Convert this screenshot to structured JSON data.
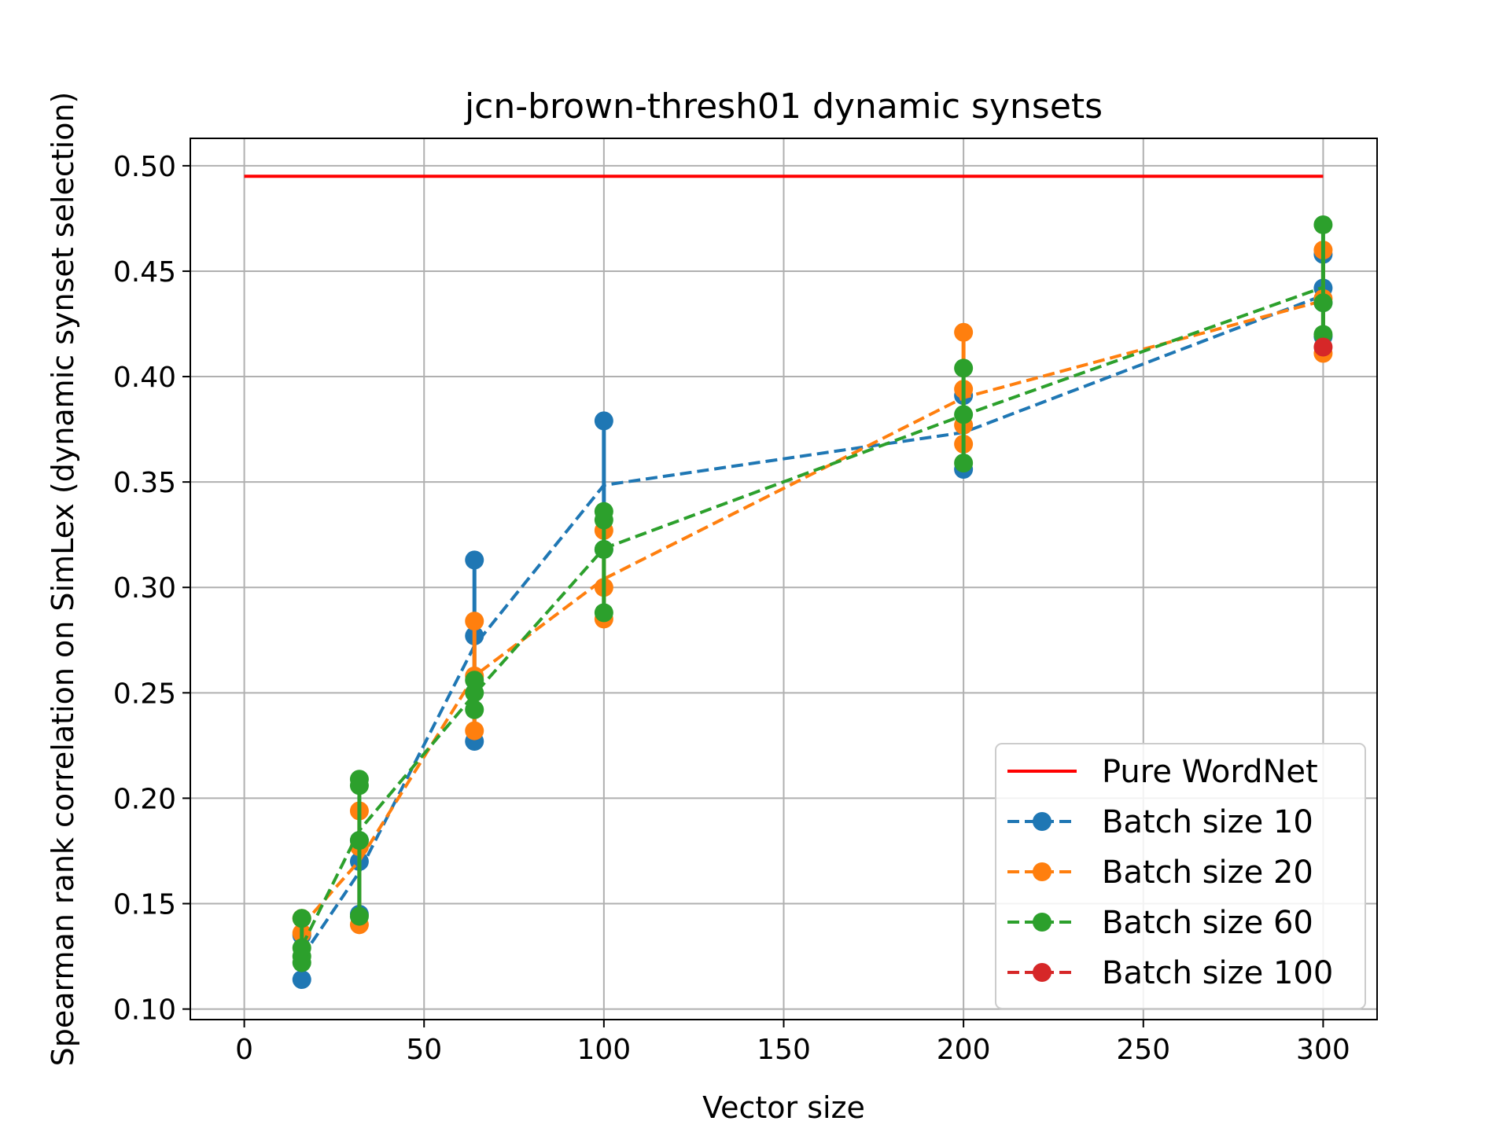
{
  "chart_data": {
    "type": "line",
    "title": "jcn-brown-thresh01 dynamic synsets",
    "xlabel": "Vector size",
    "ylabel": "Spearman rank correlation on SimLex (dynamic synset selection)",
    "xlim": [
      -15,
      315
    ],
    "ylim": [
      0.095,
      0.513
    ],
    "xticks": [
      0,
      50,
      100,
      150,
      200,
      250,
      300
    ],
    "yticks": [
      0.1,
      0.15,
      0.2,
      0.25,
      0.3,
      0.35,
      0.4,
      0.45,
      0.5
    ],
    "xtick_labels": [
      "0",
      "50",
      "100",
      "150",
      "200",
      "250",
      "300"
    ],
    "ytick_labels": [
      "0.10",
      "0.15",
      "0.20",
      "0.25",
      "0.30",
      "0.35",
      "0.40",
      "0.45",
      "0.50"
    ],
    "grid": true,
    "legend_position": "lower-right",
    "reference_line": {
      "name": "Pure WordNet",
      "x": [
        0,
        300
      ],
      "y": 0.495,
      "color": "#ff0000"
    },
    "series": [
      {
        "name": "Batch size 10",
        "color": "#1f77b4",
        "groups": [
          {
            "x": 16,
            "y": [
              0.114,
              0.135
            ]
          },
          {
            "x": 32,
            "y": [
              0.145,
              0.17,
              0.18
            ]
          },
          {
            "x": 64,
            "y": [
              0.227,
              0.277,
              0.313
            ]
          },
          {
            "x": 100,
            "y": [
              0.318,
              0.379
            ]
          },
          {
            "x": 200,
            "y": [
              0.356,
              0.391
            ]
          },
          {
            "x": 300,
            "y": [
              0.419,
              0.435,
              0.442,
              0.458
            ]
          }
        ]
      },
      {
        "name": "Batch size 20",
        "color": "#ff7f0e",
        "groups": [
          {
            "x": 16,
            "y": [
              0.136,
              0.143
            ]
          },
          {
            "x": 32,
            "y": [
              0.14,
              0.177,
              0.194
            ]
          },
          {
            "x": 64,
            "y": [
              0.232,
              0.258,
              0.284
            ]
          },
          {
            "x": 100,
            "y": [
              0.285,
              0.3,
              0.327
            ]
          },
          {
            "x": 200,
            "y": [
              0.368,
              0.377,
              0.394,
              0.421
            ]
          },
          {
            "x": 300,
            "y": [
              0.411,
              0.437,
              0.46
            ]
          }
        ]
      },
      {
        "name": "Batch size 60",
        "color": "#2ca02c",
        "groups": [
          {
            "x": 16,
            "y": [
              0.122,
              0.125,
              0.129,
              0.143
            ]
          },
          {
            "x": 32,
            "y": [
              0.144,
              0.18,
              0.206,
              0.209
            ]
          },
          {
            "x": 64,
            "y": [
              0.242,
              0.25,
              0.256
            ]
          },
          {
            "x": 100,
            "y": [
              0.288,
              0.318,
              0.332,
              0.336
            ]
          },
          {
            "x": 200,
            "y": [
              0.359,
              0.382,
              0.404
            ]
          },
          {
            "x": 300,
            "y": [
              0.42,
              0.435,
              0.472
            ]
          }
        ]
      },
      {
        "name": "Batch size 100",
        "color": "#d62728",
        "groups": [
          {
            "x": 300,
            "y": [
              0.414
            ]
          }
        ]
      }
    ]
  }
}
